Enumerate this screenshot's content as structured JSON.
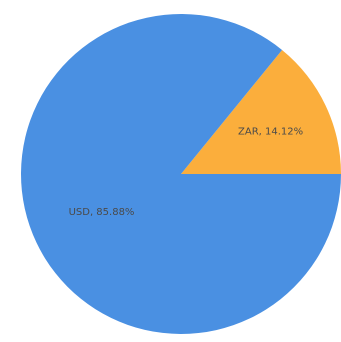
{
  "chart_data": {
    "type": "pie",
    "slices": [
      {
        "label": "ZAR",
        "value": 14.12,
        "color": "#FBAE3C",
        "data_label": "ZAR, 14.12%"
      },
      {
        "label": "USD",
        "value": 85.88,
        "color": "#4A90E2",
        "data_label": "USD, 85.88%"
      }
    ],
    "start_angle_deg": 0,
    "direction": "counterclockwise",
    "legend": "none"
  }
}
